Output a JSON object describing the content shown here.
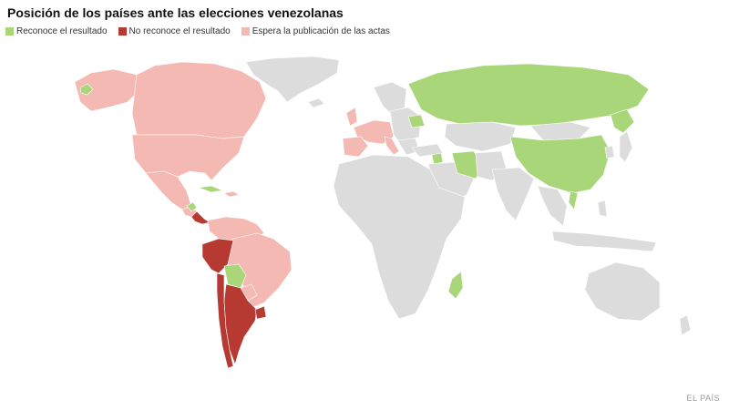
{
  "title": "Posición de los países ante las elecciones venezolanas",
  "legend": [
    {
      "label": "Reconoce el resultado",
      "color": "#a9d678"
    },
    {
      "label": "No reconoce el resultado",
      "color": "#b73a32"
    },
    {
      "label": "Espera la publicación de las actas",
      "color": "#f5b9b3"
    }
  ],
  "colors": {
    "neutral": "#dcdcdc",
    "recognizes": "#a9d678",
    "rejects": "#b73a32",
    "awaits": "#f5b9b3"
  },
  "credit": "EL PAÍS"
}
